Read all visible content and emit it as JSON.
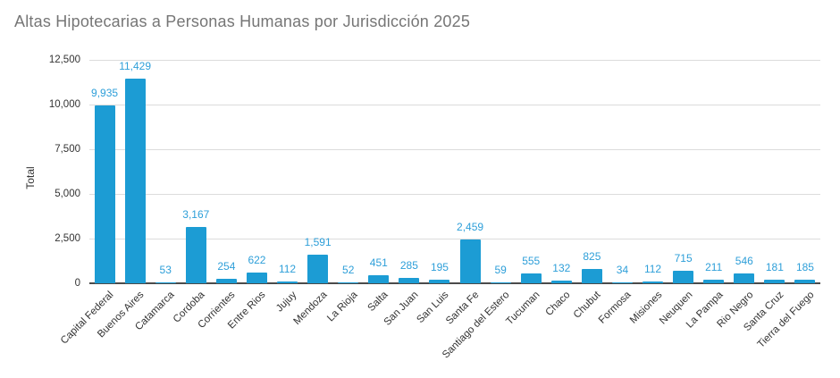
{
  "title": "Altas Hipotecarias a Personas Humanas por Jurisdicción 2025",
  "colors": {
    "bar": "#1c9cd4",
    "data_label": "#2e9fd9",
    "title_text": "#767676",
    "axis_text": "#333333",
    "gridline": "#dcdcdc",
    "baseline": "#4a4a4a",
    "background": "#ffffff"
  },
  "chart_data": {
    "type": "bar",
    "title": "Altas Hipotecarias a Personas Humanas por Jurisdicción 2025",
    "xlabel": "",
    "ylabel": "Total",
    "ylim": [
      0,
      12500
    ],
    "yticks": [
      0,
      2500,
      5000,
      7500,
      10000,
      12500
    ],
    "grid": true,
    "legend": false,
    "data_labels_shown": true,
    "categories": [
      "Capital Federal",
      "Buenos Aires",
      "Catamarca",
      "Cordoba",
      "Corrientes",
      "Entre Rios",
      "Jujuy",
      "Mendoza",
      "La Rioja",
      "Salta",
      "San Juan",
      "San Luis",
      "Santa Fe",
      "Santiago del Estero",
      "Tucuman",
      "Chaco",
      "Chubut",
      "Formosa",
      "Misiones",
      "Neuquen",
      "La Pampa",
      "Rio Negro",
      "Santa Cruz",
      "Tierra del Fuego"
    ],
    "values": [
      9935,
      11429,
      53,
      3167,
      254,
      622,
      112,
      1591,
      52,
      451,
      285,
      195,
      2459,
      59,
      555,
      132,
      825,
      34,
      112,
      715,
      211,
      546,
      181,
      185
    ]
  }
}
